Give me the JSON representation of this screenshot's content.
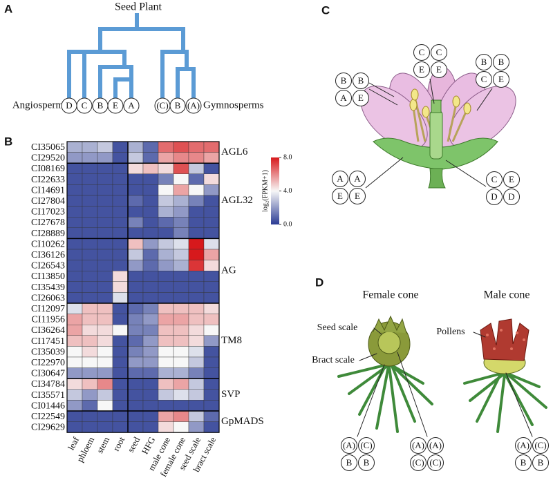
{
  "panels": [
    "A",
    "B",
    "C",
    "D"
  ],
  "tree": {
    "title": "Seed Plant",
    "left_label": "Angiosperm",
    "right_label": "Gymnosperms",
    "leaves": [
      "D",
      "C",
      "B",
      "E",
      "A",
      "(C)",
      "B",
      "(A)"
    ]
  },
  "chart_data": {
    "type": "heatmap",
    "columns": [
      "leaf",
      "phloem",
      "stem",
      "root",
      "seed",
      "HFG",
      "male cone",
      "female cone",
      "seed scale",
      "bract scale"
    ],
    "groups": [
      {
        "name": "AGL6",
        "rows": [
          "CI35065",
          "CI29520"
        ],
        "values": [
          [
            2.5,
            2.5,
            3,
            0.5,
            2.5,
            1,
            6.5,
            7,
            6.5,
            6.5
          ],
          [
            2,
            2,
            2,
            0.5,
            3,
            1,
            5.5,
            6,
            6,
            5.5
          ]
        ]
      },
      {
        "name": "AGL32",
        "rows": [
          "CI08169",
          "CI22633",
          "CI14691",
          "CI27804",
          "CI17023",
          "CI27678",
          "CI28889"
        ],
        "values": [
          [
            0.5,
            0.5,
            0.5,
            0.5,
            4.5,
            5,
            4.5,
            7,
            3,
            0.5
          ],
          [
            0.5,
            0.5,
            0.5,
            0.5,
            0.5,
            0.5,
            1.5,
            4,
            1,
            4.5
          ],
          [
            0.5,
            0.5,
            0.5,
            0.5,
            0.5,
            0.5,
            4,
            5.5,
            4,
            2
          ],
          [
            0.5,
            0.5,
            0.5,
            0.5,
            1,
            0.5,
            3,
            2.5,
            1.5,
            0.5
          ],
          [
            0.5,
            0.5,
            0.5,
            0.5,
            0.5,
            0.5,
            2.5,
            2,
            0.5,
            0.5
          ],
          [
            0.5,
            0.5,
            0.5,
            0.5,
            1.5,
            0.5,
            1,
            1.5,
            0.5,
            0.5
          ],
          [
            0.5,
            0.5,
            0.5,
            0.5,
            0.5,
            0.5,
            0.5,
            1.5,
            0.5,
            0.5
          ]
        ]
      },
      {
        "name": "AG",
        "rows": [
          "CI10262",
          "CI36126",
          "CI26543",
          "CI13850",
          "CI35439",
          "CI26063"
        ],
        "values": [
          [
            0.5,
            0.5,
            0.5,
            0.5,
            5,
            2,
            3,
            3.5,
            8,
            3.5
          ],
          [
            0.5,
            0.5,
            0.5,
            0.5,
            3,
            1,
            2.5,
            3,
            8,
            5.5
          ],
          [
            0.5,
            0.5,
            0.5,
            0.5,
            2,
            1,
            2,
            2.5,
            7.5,
            4.5
          ],
          [
            0.5,
            0.5,
            0.5,
            4.5,
            0.5,
            0.5,
            0.5,
            0.5,
            0.5,
            0.5
          ],
          [
            0.5,
            0.5,
            0.5,
            4.5,
            0.5,
            0.5,
            0.5,
            0.5,
            0.5,
            0.5
          ],
          [
            0.5,
            0.5,
            0.5,
            3.5,
            0.5,
            0.5,
            0.5,
            0.5,
            0.5,
            0.5
          ]
        ]
      },
      {
        "name": "TM8",
        "rows": [
          "CI12097",
          "CI11956",
          "CI36264",
          "CI17451",
          "CI35039",
          "CI22970",
          "CI30647"
        ],
        "values": [
          [
            3.5,
            5,
            5,
            0.5,
            1,
            1.5,
            5,
            5,
            5,
            4.5
          ],
          [
            5.5,
            5,
            5,
            0.5,
            1.5,
            2,
            5.5,
            5.5,
            5,
            5
          ],
          [
            5.5,
            4.5,
            4.5,
            4,
            1.5,
            1.5,
            5,
            5,
            4.5,
            4
          ],
          [
            5,
            5,
            4.5,
            0.5,
            1,
            2,
            5,
            5,
            4.5,
            2
          ],
          [
            4,
            4.5,
            4,
            0.5,
            1.5,
            2,
            4,
            4,
            3.5,
            0.5
          ],
          [
            4,
            4,
            4,
            0.5,
            2,
            2,
            4,
            4,
            3,
            0.5
          ],
          [
            2,
            2,
            2,
            0.5,
            1,
            1,
            2.5,
            2.5,
            1.5,
            0.5
          ]
        ]
      },
      {
        "name": "SVP",
        "rows": [
          "CI34784",
          "CI35571",
          "CI01446"
        ],
        "values": [
          [
            4.5,
            5,
            6,
            0.5,
            0.5,
            0.5,
            5,
            5.5,
            3,
            0.5
          ],
          [
            3,
            2,
            3,
            0.5,
            0.5,
            0.5,
            3,
            3.5,
            3,
            0.5
          ],
          [
            2,
            1,
            4,
            0.5,
            0.5,
            0.5,
            0.5,
            0.5,
            0.5,
            0.5
          ]
        ]
      },
      {
        "name": "GpMADS",
        "rows": [
          "CI22549",
          "CI29629"
        ],
        "values": [
          [
            0.5,
            0.5,
            0.5,
            0.5,
            0.5,
            0.5,
            5.5,
            6,
            3,
            1
          ],
          [
            0.5,
            0.5,
            0.5,
            0.5,
            0.5,
            0.5,
            4.5,
            4,
            2,
            0.5
          ]
        ]
      }
    ],
    "colorbar": {
      "label": "log₂(FPKM+1)",
      "clim": [
        0,
        8
      ],
      "ticks": [
        {
          "value": 0,
          "label": "0.0"
        },
        {
          "value": 4,
          "label": "4.0"
        },
        {
          "value": 8,
          "label": "8.0"
        }
      ]
    },
    "colormap": [
      "#2a3b94",
      "#f7f7f7",
      "#d7191c"
    ]
  },
  "flower": {
    "groups": [
      {
        "labels": [
          "B",
          "B",
          "A",
          "E"
        ]
      },
      {
        "labels": [
          "C",
          "C",
          "E",
          "E"
        ]
      },
      {
        "labels": [
          "B",
          "B",
          "C",
          "E"
        ]
      },
      {
        "labels": [
          "A",
          "A",
          "E",
          "E"
        ]
      },
      {
        "labels": [
          "C",
          "E",
          "D",
          "D"
        ]
      }
    ]
  },
  "cones": {
    "female_title": "Female cone",
    "male_title": "Male cone",
    "seed_scale": "Seed scale",
    "bract_scale": "Bract scale",
    "pollens": "Pollens",
    "groups": [
      {
        "labels": [
          "(A)",
          "(C)",
          "B",
          "B"
        ]
      },
      {
        "labels": [
          "(A)",
          "(A)",
          "(C)",
          "(C)"
        ]
      },
      {
        "labels": [
          "(A)",
          "(C)",
          "B",
          "B"
        ]
      }
    ]
  }
}
